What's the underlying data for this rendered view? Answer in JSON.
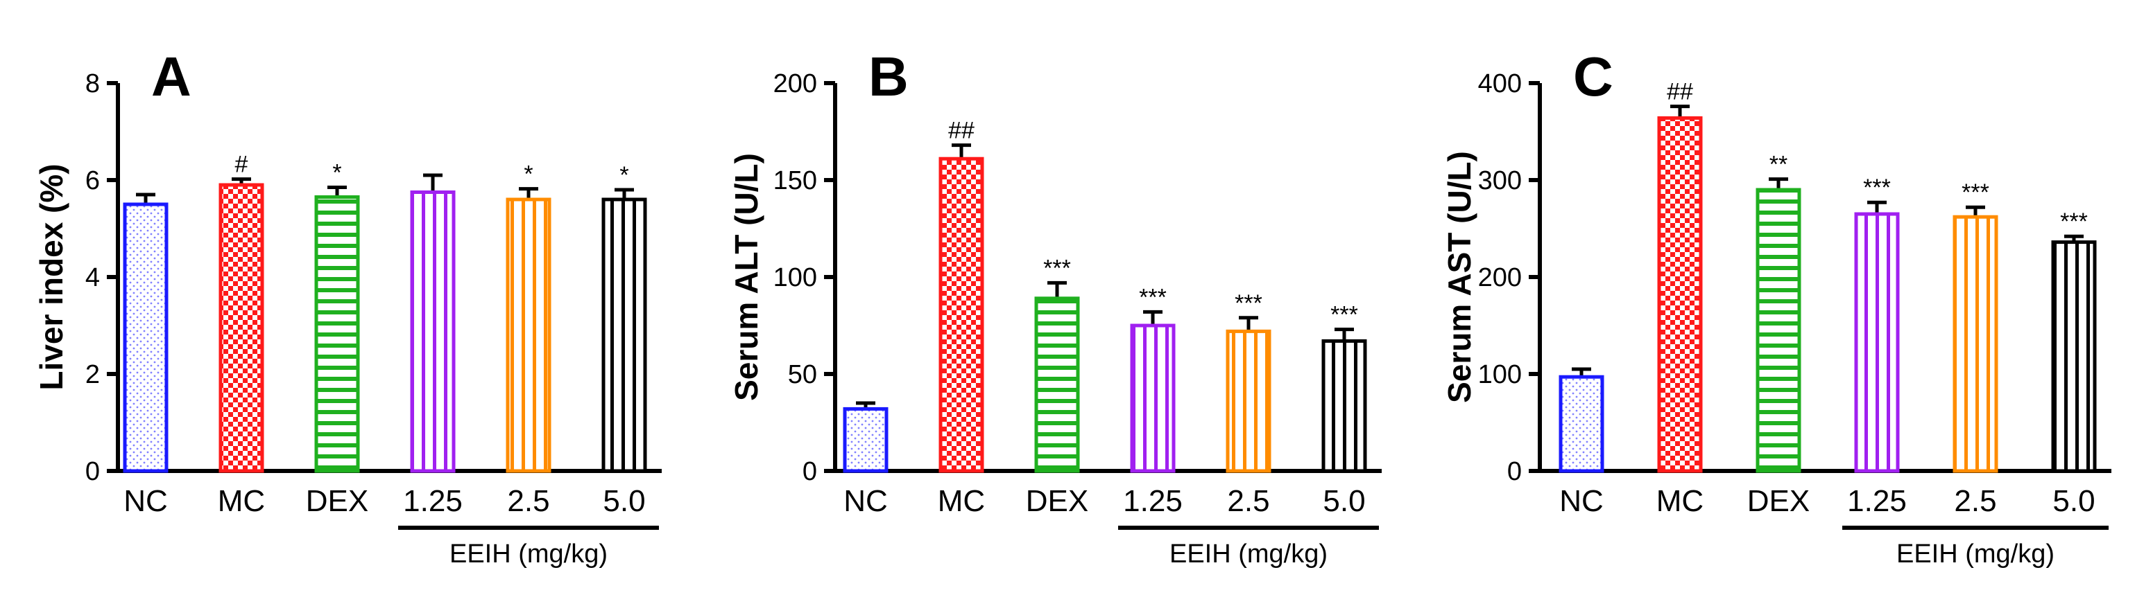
{
  "chart_data": [
    {
      "type": "bar",
      "panel": "A",
      "ylabel": "Liver index (%)",
      "ylim": [
        0,
        8
      ],
      "yticks": [
        0,
        2,
        4,
        6,
        8
      ],
      "ytick_labels": [
        "0",
        "2",
        "4",
        "6",
        "8"
      ],
      "categories": [
        "NC",
        "MC",
        "DEX",
        "1.25",
        "2.5",
        "5.0"
      ],
      "values": [
        5.5,
        5.9,
        5.65,
        5.75,
        5.6,
        5.6
      ],
      "errors": [
        0.2,
        0.12,
        0.2,
        0.35,
        0.22,
        0.2
      ],
      "significance": [
        "",
        "#",
        "*",
        "",
        "*",
        "*"
      ],
      "group_label": "EEIH (mg/kg)",
      "group_start": 3,
      "group_end": 5
    },
    {
      "type": "bar",
      "panel": "B",
      "ylabel": "Serum ALT (U/L)",
      "ylim": [
        0,
        200
      ],
      "yticks": [
        0,
        50,
        100,
        150,
        200
      ],
      "ytick_labels": [
        "0",
        "50",
        "100",
        "150",
        "200"
      ],
      "categories": [
        "NC",
        "MC",
        "DEX",
        "1.25",
        "2.5",
        "5.0"
      ],
      "values": [
        32,
        161,
        89,
        75,
        72,
        67
      ],
      "errors": [
        3,
        7,
        8,
        7,
        7,
        6
      ],
      "significance": [
        "",
        "##",
        "***",
        "***",
        "***",
        "***"
      ],
      "group_label": "EEIH (mg/kg)",
      "group_start": 3,
      "group_end": 5
    },
    {
      "type": "bar",
      "panel": "C",
      "ylabel": "Serum AST (U/L)",
      "ylim": [
        0,
        400
      ],
      "yticks": [
        0,
        100,
        200,
        300,
        400
      ],
      "ytick_labels": [
        "0",
        "100",
        "200",
        "300",
        "400"
      ],
      "categories": [
        "NC",
        "MC",
        "DEX",
        "1.25",
        "2.5",
        "5.0"
      ],
      "values": [
        97,
        364,
        290,
        265,
        262,
        236
      ],
      "errors": [
        8,
        12,
        11,
        12,
        10,
        6
      ],
      "significance": [
        "",
        "##",
        "**",
        "***",
        "***",
        "***"
      ],
      "group_label": "EEIH (mg/kg)",
      "group_start": 3,
      "group_end": 5
    }
  ],
  "bar_styles": [
    {
      "name": "NC",
      "stroke": "#1a1aff",
      "pattern": "dots"
    },
    {
      "name": "MC",
      "stroke": "#ff1a1a",
      "pattern": "checker"
    },
    {
      "name": "DEX",
      "stroke": "#1fb01f",
      "pattern": "hstripes"
    },
    {
      "name": "1.25",
      "stroke": "#a020f0",
      "pattern": "vstripes"
    },
    {
      "name": "2.5",
      "stroke": "#ff8c00",
      "pattern": "vstripes"
    },
    {
      "name": "5.0",
      "stroke": "#000000",
      "pattern": "vstripes"
    }
  ]
}
